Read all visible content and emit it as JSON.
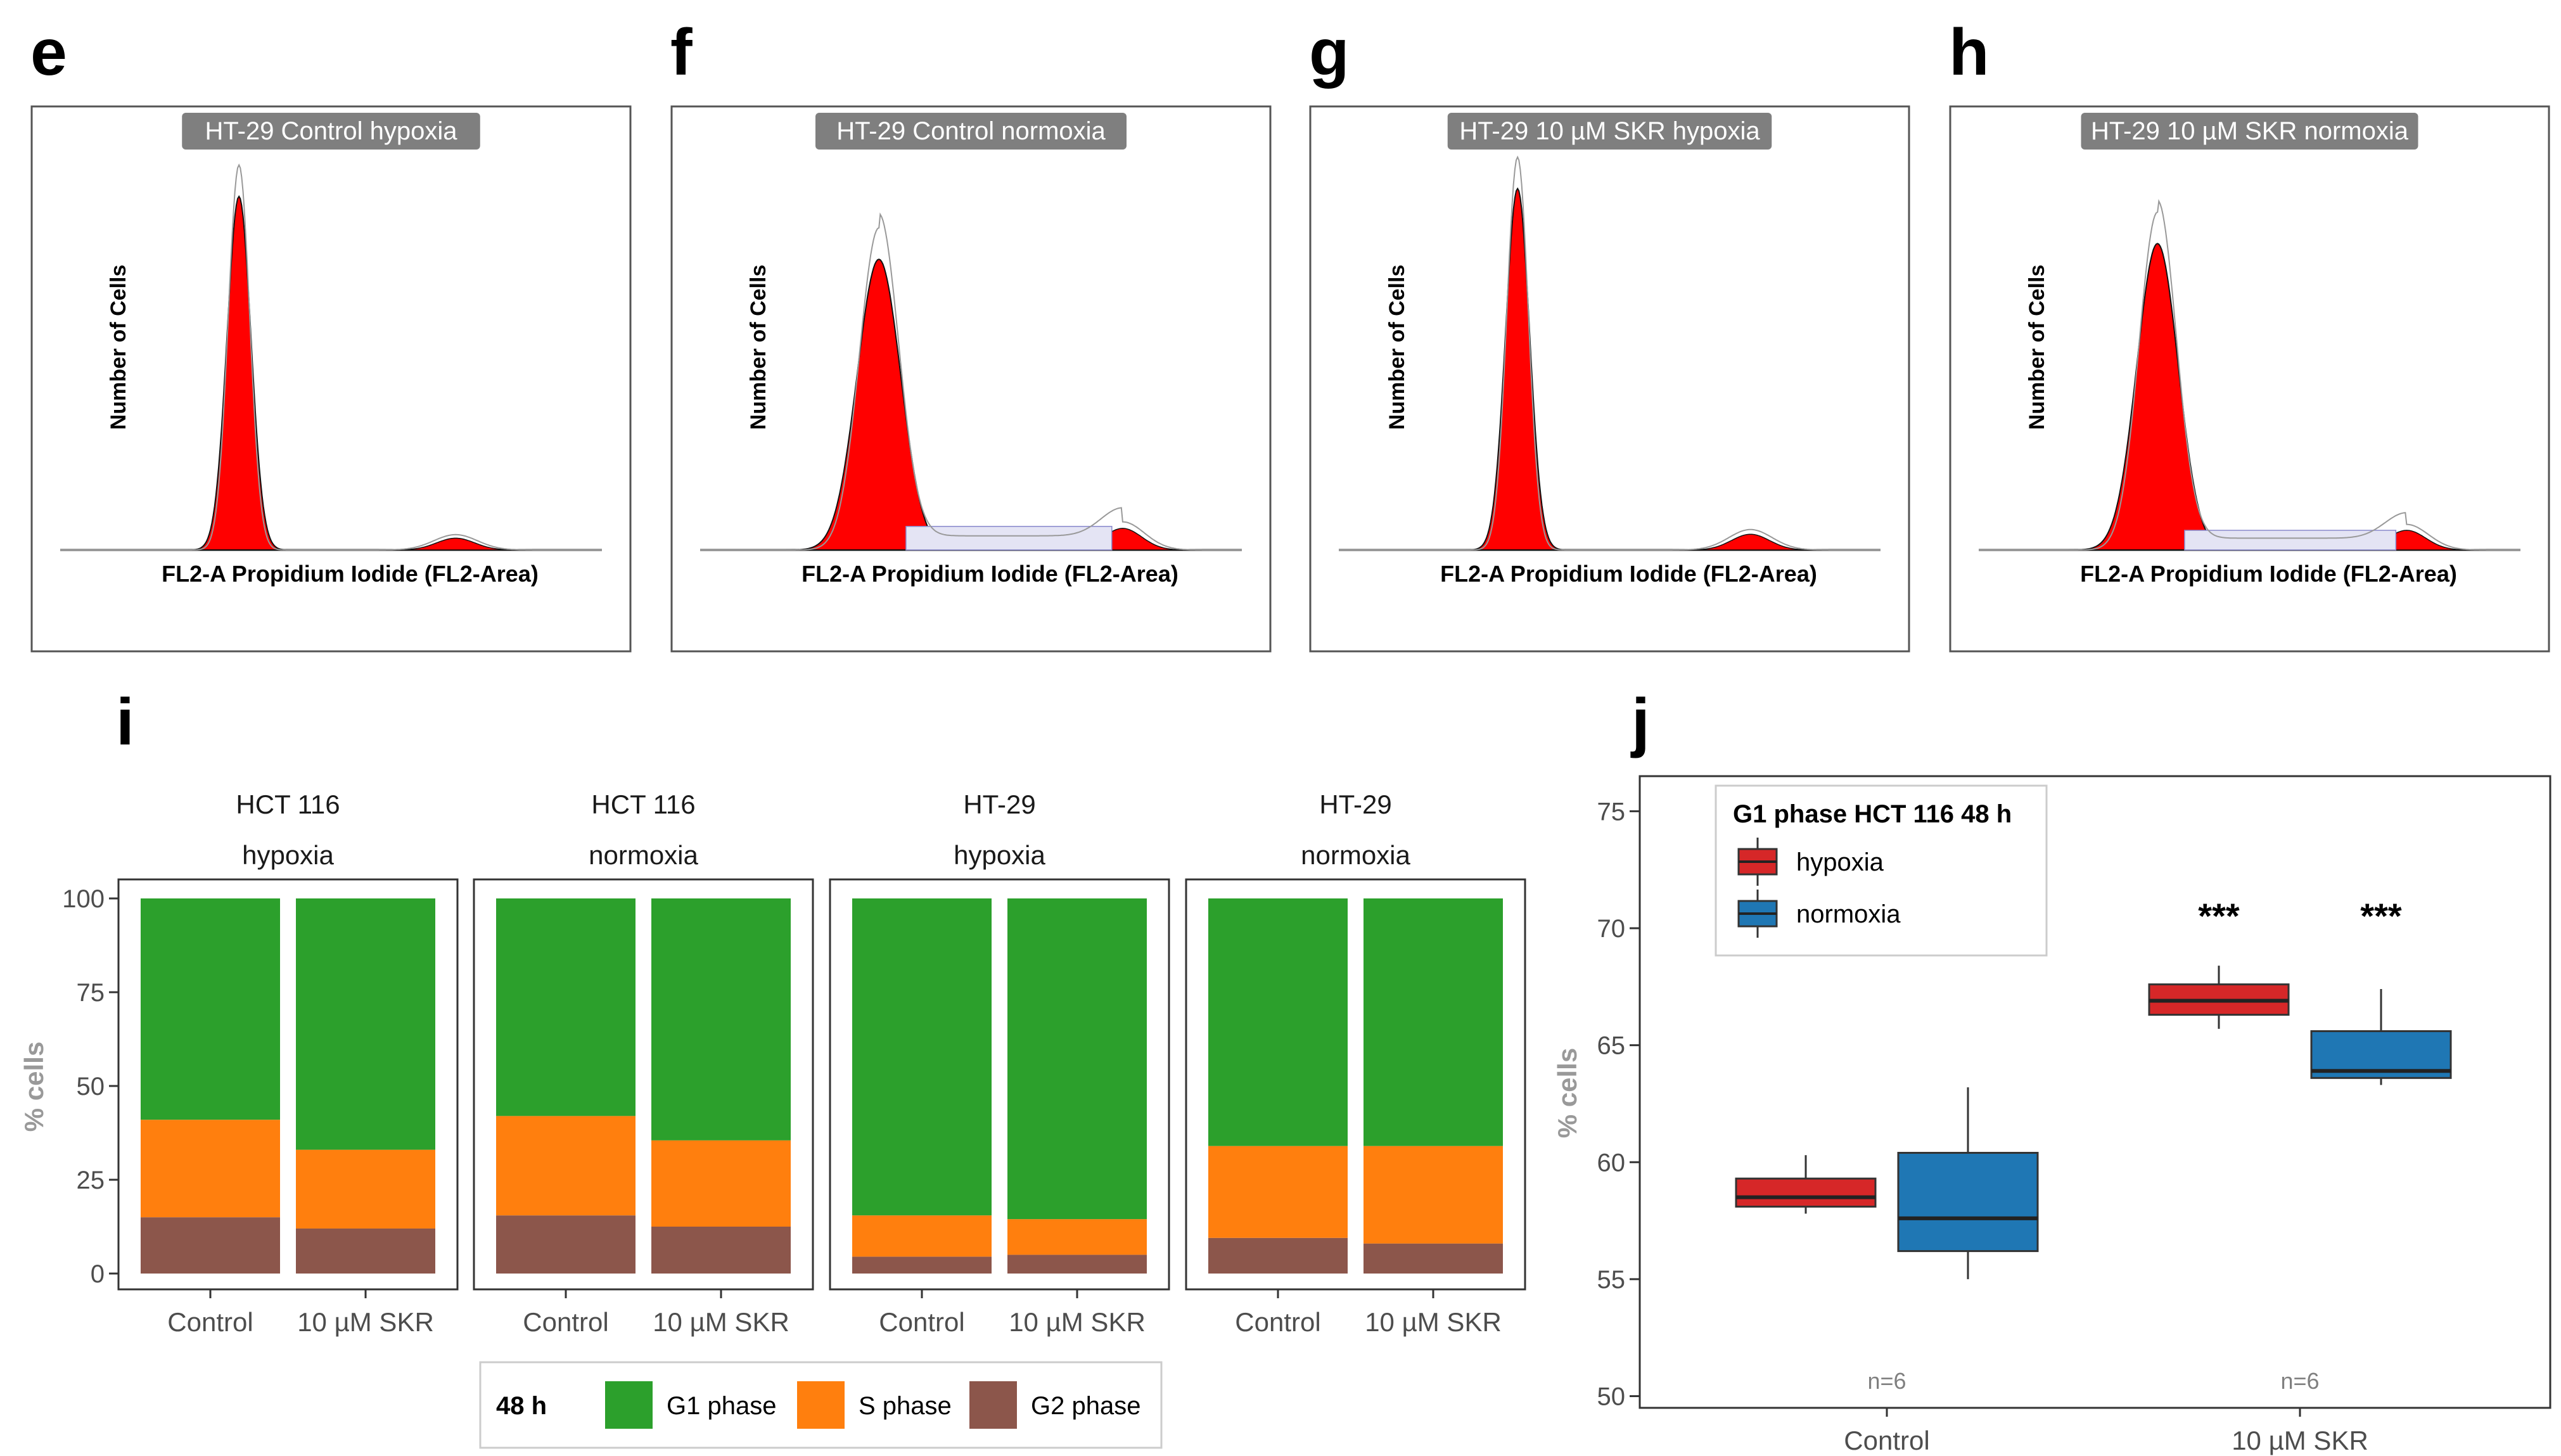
{
  "colors": {
    "histogram_fill": "#ff0000",
    "g1": "#2ca02c",
    "s": "#ff7f0e",
    "g2": "#8c564b",
    "hypoxia": "#d62728",
    "normoxia": "#1f77b4"
  },
  "histograms": {
    "panels": [
      {
        "letter": "e",
        "title": "HT-29 Control hypoxia",
        "ylabel": "Number of Cells",
        "xlabel": "FL2-A Propidium Iodide (FL2-Area)"
      },
      {
        "letter": "f",
        "title": "HT-29 Control normoxia",
        "ylabel": "Number of Cells",
        "xlabel": "FL2-A Propidium Iodide (FL2-Area)"
      },
      {
        "letter": "g",
        "title": "HT-29 10 µM SKR hypoxia",
        "ylabel": "Number of Cells",
        "xlabel": "FL2-A Propidium Iodide (FL2-Area)"
      },
      {
        "letter": "h",
        "title": "HT-29 10 µM SKR normoxia",
        "ylabel": "Number of Cells",
        "xlabel": "FL2-A Propidium Iodide (FL2-Area)"
      }
    ]
  },
  "panel_i": {
    "letter": "i"
  },
  "panel_j": {
    "letter": "j"
  },
  "chart_data": [
    {
      "type": "bar",
      "title": "",
      "stacked": true,
      "ylabel": "% cells",
      "ylim": [
        0,
        100
      ],
      "yticks": [
        "0",
        "25",
        "50",
        "75",
        "100"
      ],
      "categories": [
        "Control",
        "10 µM SKR"
      ],
      "facets": [
        {
          "line1": "HCT 116",
          "line2": "hypoxia",
          "series": [
            {
              "name": "G2 phase",
              "values": [
                15,
                12
              ]
            },
            {
              "name": "S phase",
              "values": [
                26,
                21
              ]
            },
            {
              "name": "G1 phase",
              "values": [
                59,
                67
              ]
            }
          ]
        },
        {
          "line1": "HCT 116",
          "line2": "normoxia",
          "series": [
            {
              "name": "G2 phase",
              "values": [
                15.5,
                12.5
              ]
            },
            {
              "name": "S phase",
              "values": [
                26.5,
                23
              ]
            },
            {
              "name": "G1 phase",
              "values": [
                58,
                64.5
              ]
            }
          ]
        },
        {
          "line1": "HT-29",
          "line2": "hypoxia",
          "series": [
            {
              "name": "G2 phase",
              "values": [
                4.5,
                5
              ]
            },
            {
              "name": "S phase",
              "values": [
                11,
                9.5
              ]
            },
            {
              "name": "G1 phase",
              "values": [
                84.5,
                85.5
              ]
            }
          ]
        },
        {
          "line1": "HT-29",
          "line2": "normoxia",
          "series": [
            {
              "name": "G2 phase",
              "values": [
                9.5,
                8
              ]
            },
            {
              "name": "S phase",
              "values": [
                24.5,
                26
              ]
            },
            {
              "name": "G1 phase",
              "values": [
                66,
                66
              ]
            }
          ]
        }
      ],
      "legend": {
        "title": "48 h",
        "items": [
          "G1 phase",
          "S phase",
          "G2 phase"
        ]
      }
    },
    {
      "type": "box",
      "title": "G1 phase HCT 116 48 h",
      "ylabel": "% cells",
      "ylim": [
        49.5,
        76.5
      ],
      "yticks": [
        "50",
        "55",
        "60",
        "65",
        "70",
        "75"
      ],
      "categories": [
        "Control",
        "10 µM SKR"
      ],
      "series": [
        {
          "name": "hypoxia",
          "boxes": [
            {
              "min": 57.8,
              "q1": 58.1,
              "median": 58.5,
              "q3": 59.3,
              "max": 60.3
            },
            {
              "min": 65.7,
              "q1": 66.3,
              "median": 66.9,
              "q3": 67.6,
              "max": 68.4
            }
          ]
        },
        {
          "name": "normoxia",
          "boxes": [
            {
              "min": 55.0,
              "q1": 56.2,
              "median": 57.6,
              "q3": 60.4,
              "max": 63.2
            },
            {
              "min": 63.3,
              "q1": 63.6,
              "median": 63.9,
              "q3": 65.6,
              "max": 67.4
            }
          ]
        }
      ],
      "annotations": {
        "significance": [
          "***",
          "***"
        ],
        "n_labels": [
          "n=6",
          "n=6"
        ]
      }
    }
  ]
}
